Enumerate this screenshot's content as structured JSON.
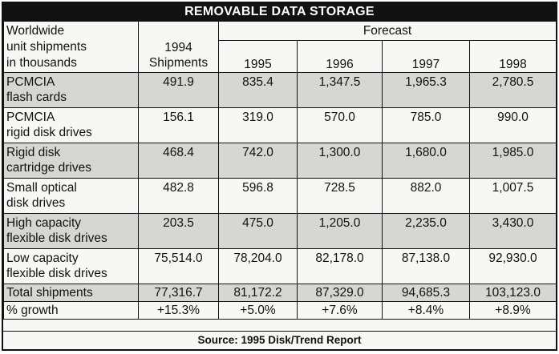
{
  "title": "REMOVABLE DATA STORAGE",
  "header": {
    "row_label": [
      "Worldwide",
      "unit shipments",
      "in thousands"
    ],
    "shipments_label": [
      "1994",
      "Shipments"
    ],
    "forecast_label": "Forecast",
    "years": [
      "1995",
      "1996",
      "1997",
      "1998"
    ]
  },
  "rows": [
    {
      "label": [
        "PCMCIA",
        "flash cards"
      ],
      "values": [
        "491.9",
        "835.4",
        "1,347.5",
        "1,965.3",
        "2,780.5"
      ]
    },
    {
      "label": [
        "PCMCIA",
        "rigid disk drives"
      ],
      "values": [
        "156.1",
        "319.0",
        "570.0",
        "785.0",
        "990.0"
      ]
    },
    {
      "label": [
        "Rigid disk",
        "cartridge drives"
      ],
      "values": [
        "468.4",
        "742.0",
        "1,300.0",
        "1,680.0",
        "1,985.0"
      ]
    },
    {
      "label": [
        "Small optical",
        "disk drives"
      ],
      "values": [
        "482.8",
        "596.8",
        "728.5",
        "882.0",
        "1,007.5"
      ]
    },
    {
      "label": [
        "High capacity",
        "flexible disk drives"
      ],
      "values": [
        "203.5",
        "475.0",
        "1,205.0",
        "2,235.0",
        "3,430.0"
      ]
    },
    {
      "label": [
        "Low capacity",
        "flexible disk drives"
      ],
      "values": [
        "75,514.0",
        "78,204.0",
        "82,178.0",
        "87,138.0",
        "92,930.0"
      ]
    }
  ],
  "total": {
    "label": "Total shipments",
    "values": [
      "77,316.7",
      "81,172.2",
      "87,329.0",
      "94,685.3",
      "103,123.0"
    ]
  },
  "growth": {
    "label": "% growth",
    "values": [
      "+15.3%",
      "+5.0%",
      "+7.6%",
      "+8.4%",
      "+8.9%"
    ]
  },
  "source": "Source:  1995 Disk/Trend Report"
}
